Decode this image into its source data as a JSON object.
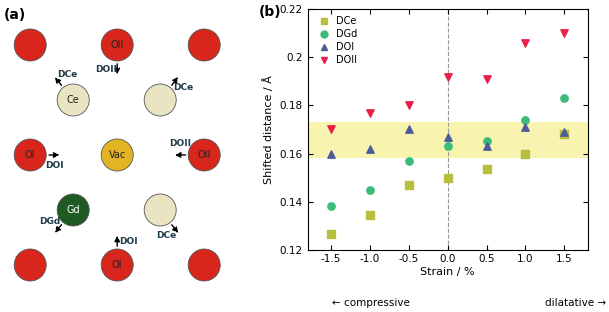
{
  "diagram": {
    "panel_label": "(a)",
    "atoms": [
      {
        "kind": "O"
      },
      {
        "kind": "O",
        "label": "OII"
      },
      {
        "kind": "O"
      },
      {
        "kind": "Ce",
        "label": "Ce"
      },
      {
        "kind": "Ce"
      },
      {
        "kind": "O",
        "label": "OI"
      },
      {
        "kind": "Vac",
        "label": "Vac"
      },
      {
        "kind": "O",
        "label": "OII"
      },
      {
        "kind": "Gd",
        "label": "Gd"
      },
      {
        "kind": "Ce"
      },
      {
        "kind": "O"
      },
      {
        "kind": "O",
        "label": "OI"
      },
      {
        "kind": "O"
      }
    ],
    "displacements": [
      {
        "label": "DCe",
        "atom": 3
      },
      {
        "label": "DOII",
        "atom": 1
      },
      {
        "label": "DCe",
        "atom": 4
      },
      {
        "label": "DOI",
        "atom": 5
      },
      {
        "label": "DOII",
        "atom": 7
      },
      {
        "label": "DGd",
        "atom": 8
      },
      {
        "label": "DOI",
        "atom": 11
      },
      {
        "label": "DCe",
        "atom": 9
      }
    ]
  },
  "chart_data": {
    "type": "scatter",
    "panel_label": "(b)",
    "x_label": "Strain / %",
    "y_label": "Shifted distance / Å",
    "annotations": {
      "left": "compressive",
      "right": "dilatative"
    },
    "x": [
      -1.5,
      -1.0,
      -0.5,
      0.0,
      0.5,
      1.0,
      1.5
    ],
    "series": [
      {
        "name": "DCe",
        "color": "#b8bf3e",
        "marker": "square",
        "values": [
          0.1265,
          0.1345,
          0.147,
          0.15,
          0.1535,
          0.16,
          0.168
        ]
      },
      {
        "name": "DGd",
        "color": "#3dbb7a",
        "marker": "circle",
        "values": [
          0.138,
          0.145,
          0.157,
          0.163,
          0.165,
          0.174,
          0.183
        ]
      },
      {
        "name": "DOI",
        "color": "#4b5b9b",
        "marker": "triangle_up",
        "values": [
          0.16,
          0.162,
          0.17,
          0.167,
          0.163,
          0.171,
          0.169
        ]
      },
      {
        "name": "DOII",
        "color": "#e8204a",
        "marker": "triangle_down",
        "values": [
          0.17,
          0.177,
          0.18,
          0.192,
          0.191,
          0.206,
          0.21
        ]
      }
    ],
    "band": [
      0.158,
      0.173
    ],
    "vline": 0.0,
    "xlim": [
      -1.8,
      1.8
    ],
    "ylim": [
      0.12,
      0.22
    ],
    "xticks": [
      -1.5,
      -1.0,
      -0.5,
      0.0,
      0.5,
      1.0,
      1.5
    ],
    "yticks": [
      0.12,
      0.14,
      0.16,
      0.18,
      0.2,
      0.22
    ],
    "legend": "upper left"
  }
}
